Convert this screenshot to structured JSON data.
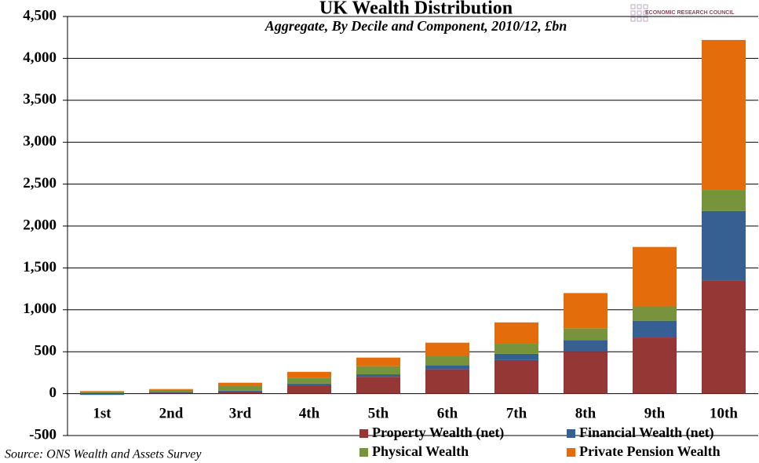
{
  "chart_data": {
    "type": "stacked_bar",
    "title": "UK Wealth Distribution",
    "subtitle": "Aggregate, By Decile and Component, 2010/12, £bn",
    "source": "Source: ONS Wealth and Assets Survey",
    "logo_text": "ECONOMIC RESEARCH COUNCIL",
    "categories": [
      "1st",
      "2nd",
      "3rd",
      "4th",
      "5th",
      "6th",
      "7th",
      "8th",
      "9th",
      "10th"
    ],
    "series": [
      {
        "name": "Property Wealth (net)",
        "color": "#953735",
        "values": [
          5,
          10,
          25,
          100,
          200,
          290,
          400,
          500,
          670,
          1350
        ]
      },
      {
        "name": "Financial Wealth (net)",
        "color": "#376092",
        "values": [
          -15,
          5,
          10,
          20,
          30,
          50,
          75,
          140,
          200,
          830
        ]
      },
      {
        "name": "Physical Wealth",
        "color": "#77933c",
        "values": [
          15,
          30,
          60,
          70,
          97,
          110,
          120,
          140,
          170,
          250
        ]
      },
      {
        "name": "Private Pension Wealth",
        "color": "#e46c0a",
        "values": [
          10,
          10,
          35,
          70,
          103,
          158,
          255,
          420,
          710,
          1790
        ]
      }
    ],
    "ylim": [
      -500,
      4500
    ],
    "yticks": [
      -500,
      0,
      500,
      {
        "value": 1000,
        "label": "1,000"
      },
      {
        "value": 1500,
        "label": "1,500"
      },
      {
        "value": 2000,
        "label": "2,000"
      },
      {
        "value": 2500,
        "label": "2,500"
      },
      {
        "value": 3000,
        "label": "3,000"
      },
      {
        "value": 3500,
        "label": "3,500"
      },
      {
        "value": 4000,
        "label": "4,000"
      },
      {
        "value": 4500,
        "label": "4,500"
      }
    ],
    "grid": true,
    "legend": "bottom-right"
  }
}
